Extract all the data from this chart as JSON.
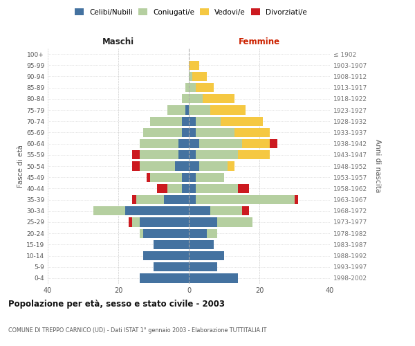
{
  "age_groups": [
    "0-4",
    "5-9",
    "10-14",
    "15-19",
    "20-24",
    "25-29",
    "30-34",
    "35-39",
    "40-44",
    "45-49",
    "50-54",
    "55-59",
    "60-64",
    "65-69",
    "70-74",
    "75-79",
    "80-84",
    "85-89",
    "90-94",
    "95-99",
    "100+"
  ],
  "birth_years": [
    "1998-2002",
    "1993-1997",
    "1988-1992",
    "1983-1987",
    "1978-1982",
    "1973-1977",
    "1968-1972",
    "1963-1967",
    "1958-1962",
    "1953-1957",
    "1948-1952",
    "1943-1947",
    "1938-1942",
    "1933-1937",
    "1928-1932",
    "1923-1927",
    "1918-1922",
    "1913-1917",
    "1908-1912",
    "1903-1907",
    "≤ 1902"
  ],
  "colors": {
    "celibi": "#4472a0",
    "coniugati": "#b5cfa0",
    "vedovi": "#f5c842",
    "divorziati": "#cc1a20"
  },
  "maschi": {
    "celibi": [
      14,
      10,
      13,
      10,
      13,
      14,
      18,
      7,
      2,
      2,
      4,
      3,
      3,
      2,
      2,
      1,
      0,
      0,
      0,
      0,
      0
    ],
    "coniugati": [
      0,
      0,
      0,
      0,
      1,
      2,
      9,
      8,
      4,
      9,
      10,
      11,
      11,
      11,
      9,
      5,
      2,
      1,
      0,
      0,
      0
    ],
    "vedovi": [
      0,
      0,
      0,
      0,
      0,
      0,
      0,
      0,
      0,
      0,
      0,
      0,
      0,
      0,
      0,
      0,
      0,
      0,
      0,
      0,
      0
    ],
    "divorziati": [
      0,
      0,
      0,
      0,
      0,
      1,
      0,
      1,
      3,
      1,
      2,
      2,
      0,
      0,
      0,
      0,
      0,
      0,
      0,
      0,
      0
    ]
  },
  "femmine": {
    "celibi": [
      14,
      8,
      10,
      7,
      5,
      8,
      6,
      2,
      2,
      2,
      3,
      2,
      3,
      2,
      2,
      0,
      0,
      0,
      0,
      0,
      0
    ],
    "coniugati": [
      0,
      0,
      0,
      0,
      3,
      10,
      9,
      28,
      12,
      8,
      8,
      12,
      12,
      11,
      7,
      6,
      4,
      2,
      1,
      0,
      0
    ],
    "vedovi": [
      0,
      0,
      0,
      0,
      0,
      0,
      0,
      0,
      0,
      0,
      2,
      9,
      8,
      10,
      12,
      10,
      9,
      5,
      4,
      3,
      0
    ],
    "divorziati": [
      0,
      0,
      0,
      0,
      0,
      0,
      2,
      1,
      3,
      0,
      0,
      0,
      2,
      0,
      0,
      0,
      0,
      0,
      0,
      0,
      0
    ]
  },
  "xlim": 40,
  "title": "Popolazione per età, sesso e stato civile - 2003",
  "subtitle": "COMUNE DI TREPPO CARNICO (UD) - Dati ISTAT 1° gennaio 2003 - Elaborazione TUTTITALIA.IT",
  "ylabel_left": "Fasce di età",
  "ylabel_right": "Anni di nascita",
  "xlabel_left": "Maschi",
  "xlabel_right": "Femmine",
  "fig_width": 6.0,
  "fig_height": 5.0,
  "dpi": 100
}
